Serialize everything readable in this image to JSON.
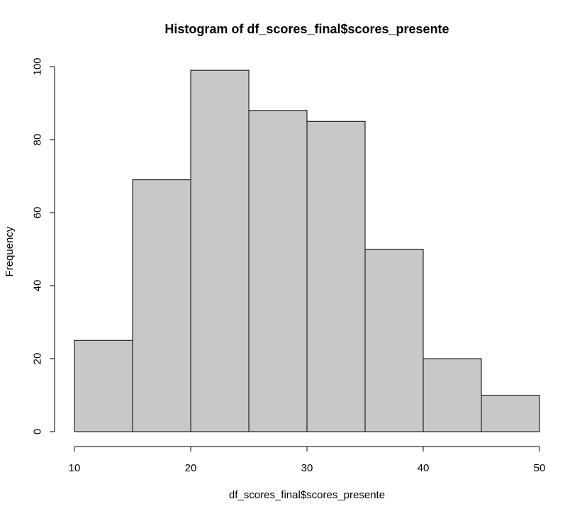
{
  "chart_data": {
    "type": "bar",
    "title": "Histogram of df_scores_final$scores_presente",
    "xlabel": "df_scores_final$scores_presente",
    "ylabel": "Frequency",
    "bins": [
      {
        "start": 10,
        "end": 15,
        "count": 25
      },
      {
        "start": 15,
        "end": 20,
        "count": 69
      },
      {
        "start": 20,
        "end": 25,
        "count": 99
      },
      {
        "start": 25,
        "end": 30,
        "count": 88
      },
      {
        "start": 30,
        "end": 35,
        "count": 85
      },
      {
        "start": 35,
        "end": 40,
        "count": 50
      },
      {
        "start": 40,
        "end": 45,
        "count": 20
      },
      {
        "start": 45,
        "end": 50,
        "count": 10
      }
    ],
    "xlim": [
      10,
      50
    ],
    "ylim": [
      0,
      100
    ],
    "x_ticks": [
      10,
      20,
      30,
      40,
      50
    ],
    "y_ticks": [
      0,
      20,
      40,
      60,
      80,
      100
    ],
    "bar_color": "#c8c8c8",
    "border_color": "#000000",
    "grid": false,
    "legend": "none"
  }
}
